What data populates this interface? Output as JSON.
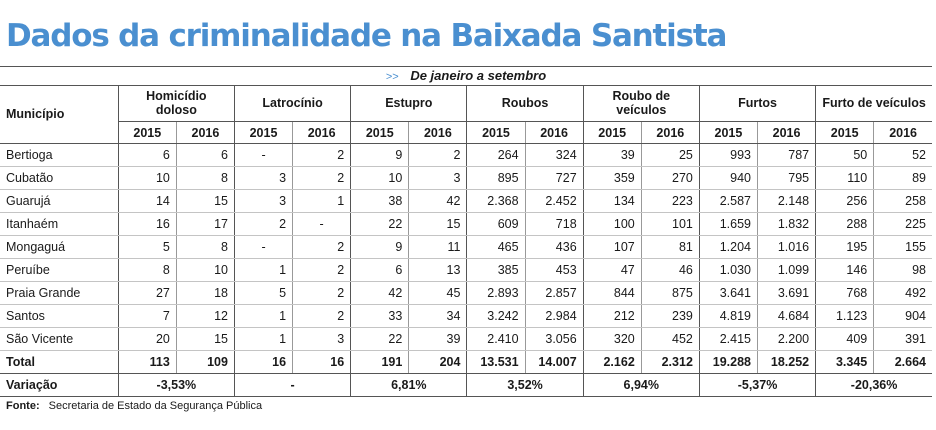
{
  "title": "Dados da criminalidade na Baixada Santista",
  "subtitle": {
    "arrow": ">>",
    "text": "De janeiro a setembro"
  },
  "header": {
    "municipio": "Município",
    "groups": [
      "Homicídio doloso",
      "Latrocínio",
      "Estupro",
      "Roubos",
      "Roubo de veículos",
      "Furtos",
      "Furto de veículos"
    ],
    "years": [
      "2015",
      "2016"
    ]
  },
  "rows": [
    {
      "name": "Bertioga",
      "values": [
        "6",
        "6",
        "-",
        "2",
        "9",
        "2",
        "264",
        "324",
        "39",
        "25",
        "993",
        "787",
        "50",
        "52"
      ]
    },
    {
      "name": "Cubatão",
      "values": [
        "10",
        "8",
        "3",
        "2",
        "10",
        "3",
        "895",
        "727",
        "359",
        "270",
        "940",
        "795",
        "110",
        "89"
      ]
    },
    {
      "name": "Guarujá",
      "values": [
        "14",
        "15",
        "3",
        "1",
        "38",
        "42",
        "2.368",
        "2.452",
        "134",
        "223",
        "2.587",
        "2.148",
        "256",
        "258"
      ]
    },
    {
      "name": "Itanhaém",
      "values": [
        "16",
        "17",
        "2",
        "-",
        "22",
        "15",
        "609",
        "718",
        "100",
        "101",
        "1.659",
        "1.832",
        "288",
        "225"
      ]
    },
    {
      "name": "Mongaguá",
      "values": [
        "5",
        "8",
        "-",
        "2",
        "9",
        "11",
        "465",
        "436",
        "107",
        "81",
        "1.204",
        "1.016",
        "195",
        "155"
      ]
    },
    {
      "name": "Peruíbe",
      "values": [
        "8",
        "10",
        "1",
        "2",
        "6",
        "13",
        "385",
        "453",
        "47",
        "46",
        "1.030",
        "1.099",
        "146",
        "98"
      ]
    },
    {
      "name": "Praia Grande",
      "values": [
        "27",
        "18",
        "5",
        "2",
        "42",
        "45",
        "2.893",
        "2.857",
        "844",
        "875",
        "3.641",
        "3.691",
        "768",
        "492"
      ]
    },
    {
      "name": "Santos",
      "values": [
        "7",
        "12",
        "1",
        "2",
        "33",
        "34",
        "3.242",
        "2.984",
        "212",
        "239",
        "4.819",
        "4.684",
        "1.123",
        "904"
      ]
    },
    {
      "name": "São Vicente",
      "values": [
        "20",
        "15",
        "1",
        "3",
        "22",
        "39",
        "2.410",
        "3.056",
        "320",
        "452",
        "2.415",
        "2.200",
        "409",
        "391"
      ]
    }
  ],
  "total": {
    "label": "Total",
    "values": [
      "113",
      "109",
      "16",
      "16",
      "191",
      "204",
      "13.531",
      "14.007",
      "2.162",
      "2.312",
      "19.288",
      "18.252",
      "3.345",
      "2.664"
    ]
  },
  "variacao": {
    "label": "Variação",
    "values": [
      "-3,53%",
      "-",
      "6,81%",
      "3,52%",
      "6,94%",
      "-5,37%",
      "-20,36%"
    ]
  },
  "source": {
    "label": "Fonte:",
    "text": "Secretaria de Estado da Segurança Pública"
  }
}
